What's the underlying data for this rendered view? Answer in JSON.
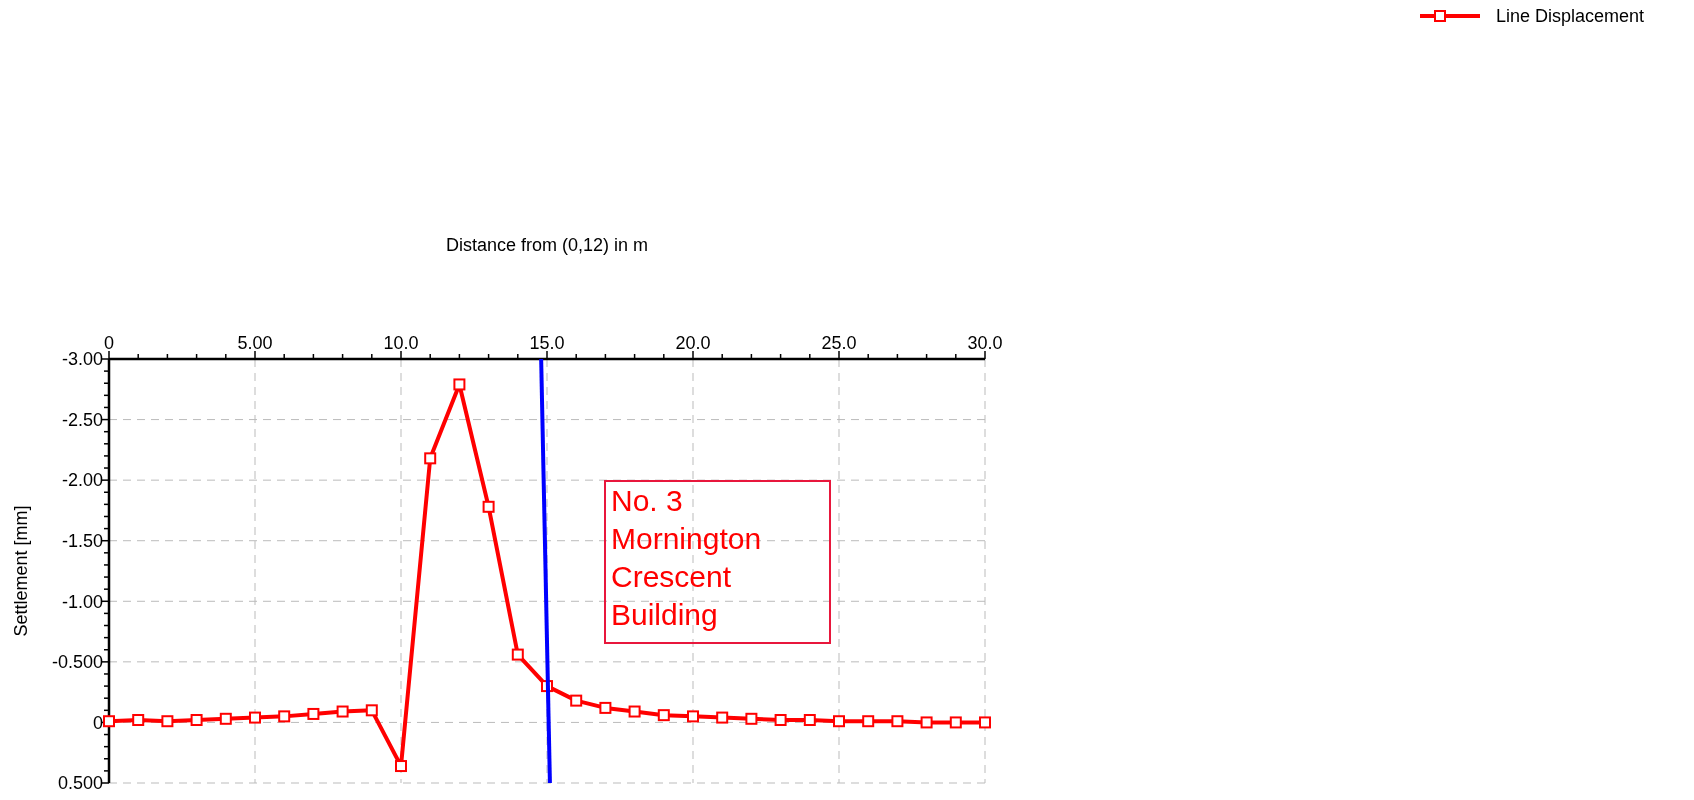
{
  "chart_data": {
    "type": "line",
    "xlabel": "Distance from (0,12) in m",
    "ylabel": "Settlement [mm]",
    "xlim": [
      0,
      30
    ],
    "ylim": [
      0.5,
      -3
    ],
    "xticks": [
      0,
      {
        "value": 1,
        "label": null
      },
      {
        "value": 2,
        "label": null
      },
      {
        "value": 3,
        "label": null
      },
      {
        "value": 4,
        "label": null
      },
      {
        "value": 5,
        "label": "5.00"
      },
      {
        "value": 6,
        "label": null
      },
      {
        "value": 7,
        "label": null
      },
      {
        "value": 8,
        "label": null
      },
      {
        "value": 9,
        "label": null
      },
      {
        "value": 10,
        "label": "10.0"
      },
      {
        "value": 11,
        "label": null
      },
      {
        "value": 12,
        "label": null
      },
      {
        "value": 13,
        "label": null
      },
      {
        "value": 14,
        "label": null
      },
      {
        "value": 15,
        "label": "15.0"
      },
      {
        "value": 16,
        "label": null
      },
      {
        "value": 17,
        "label": null
      },
      {
        "value": 18,
        "label": null
      },
      {
        "value": 19,
        "label": null
      },
      {
        "value": 20,
        "label": "20.0"
      },
      {
        "value": 21,
        "label": null
      },
      {
        "value": 22,
        "label": null
      },
      {
        "value": 23,
        "label": null
      },
      {
        "value": 24,
        "label": null
      },
      {
        "value": 25,
        "label": "25.0"
      },
      {
        "value": 26,
        "label": null
      },
      {
        "value": 27,
        "label": null
      },
      {
        "value": 28,
        "label": null
      },
      {
        "value": 29,
        "label": null
      },
      {
        "value": 30,
        "label": "30.0"
      }
    ],
    "yticks": [
      {
        "value": -3,
        "label": "-3.00"
      },
      {
        "value": -2.9,
        "label": null
      },
      {
        "value": -2.8,
        "label": null
      },
      {
        "value": -2.7,
        "label": null
      },
      {
        "value": -2.6,
        "label": null
      },
      {
        "value": -2.5,
        "label": "-2.50"
      },
      {
        "value": -2.4,
        "label": null
      },
      {
        "value": -2.3,
        "label": null
      },
      {
        "value": -2.2,
        "label": null
      },
      {
        "value": -2.1,
        "label": null
      },
      {
        "value": -2,
        "label": "-2.00"
      },
      {
        "value": -1.9,
        "label": null
      },
      {
        "value": -1.8,
        "label": null
      },
      {
        "value": -1.7,
        "label": null
      },
      {
        "value": -1.6,
        "label": null
      },
      {
        "value": -1.5,
        "label": "-1.50"
      },
      {
        "value": -1.4,
        "label": null
      },
      {
        "value": -1.3,
        "label": null
      },
      {
        "value": -1.2,
        "label": null
      },
      {
        "value": -1.1,
        "label": null
      },
      {
        "value": -1,
        "label": "-1.00"
      },
      {
        "value": -0.9,
        "label": null
      },
      {
        "value": -0.8,
        "label": null
      },
      {
        "value": -0.7,
        "label": null
      },
      {
        "value": -0.6,
        "label": null
      },
      {
        "value": -0.5,
        "label": "-0.500"
      },
      {
        "value": -0.4,
        "label": null
      },
      {
        "value": -0.3,
        "label": null
      },
      {
        "value": -0.2,
        "label": null
      },
      {
        "value": -0.1,
        "label": null
      },
      0,
      {
        "value": 0.1,
        "label": null
      },
      {
        "value": 0.2,
        "label": null
      },
      {
        "value": 0.3,
        "label": null
      },
      {
        "value": 0.4,
        "label": null
      },
      {
        "value": 0.5,
        "label": "0.500"
      }
    ],
    "grid": true,
    "legend": "top right",
    "annotations": [
      "No. 3 Mornington Crescent Building"
    ],
    "series": [
      {
        "name": "Line Displacement",
        "color": "#ff0000",
        "marker": "square",
        "line_style": "solid",
        "x": [
          0,
          1,
          2,
          3,
          4,
          5,
          6,
          7,
          8,
          9,
          10,
          11,
          12,
          13,
          14,
          15,
          16,
          17,
          18,
          19,
          20,
          21,
          22,
          23,
          24,
          25,
          26,
          27,
          28,
          29,
          30
        ],
        "values": [
          -0.01,
          -0.02,
          -0.01,
          -0.02,
          -0.03,
          -0.04,
          -0.05,
          -0.07,
          -0.09,
          -0.1,
          0.36,
          -2.18,
          -2.79,
          -1.78,
          -0.56,
          -0.3,
          -0.18,
          -0.12,
          -0.09,
          -0.06,
          -0.05,
          -0.04,
          -0.03,
          -0.02,
          -0.02,
          -0.01,
          -0.01,
          -0.01,
          0,
          0,
          0
        ]
      },
      {
        "color": "#0000ff",
        "marker": "none",
        "line_style": "solid",
        "x": [
          14.8,
          15.1
        ],
        "values": [
          -3,
          0.5
        ]
      }
    ]
  }
}
